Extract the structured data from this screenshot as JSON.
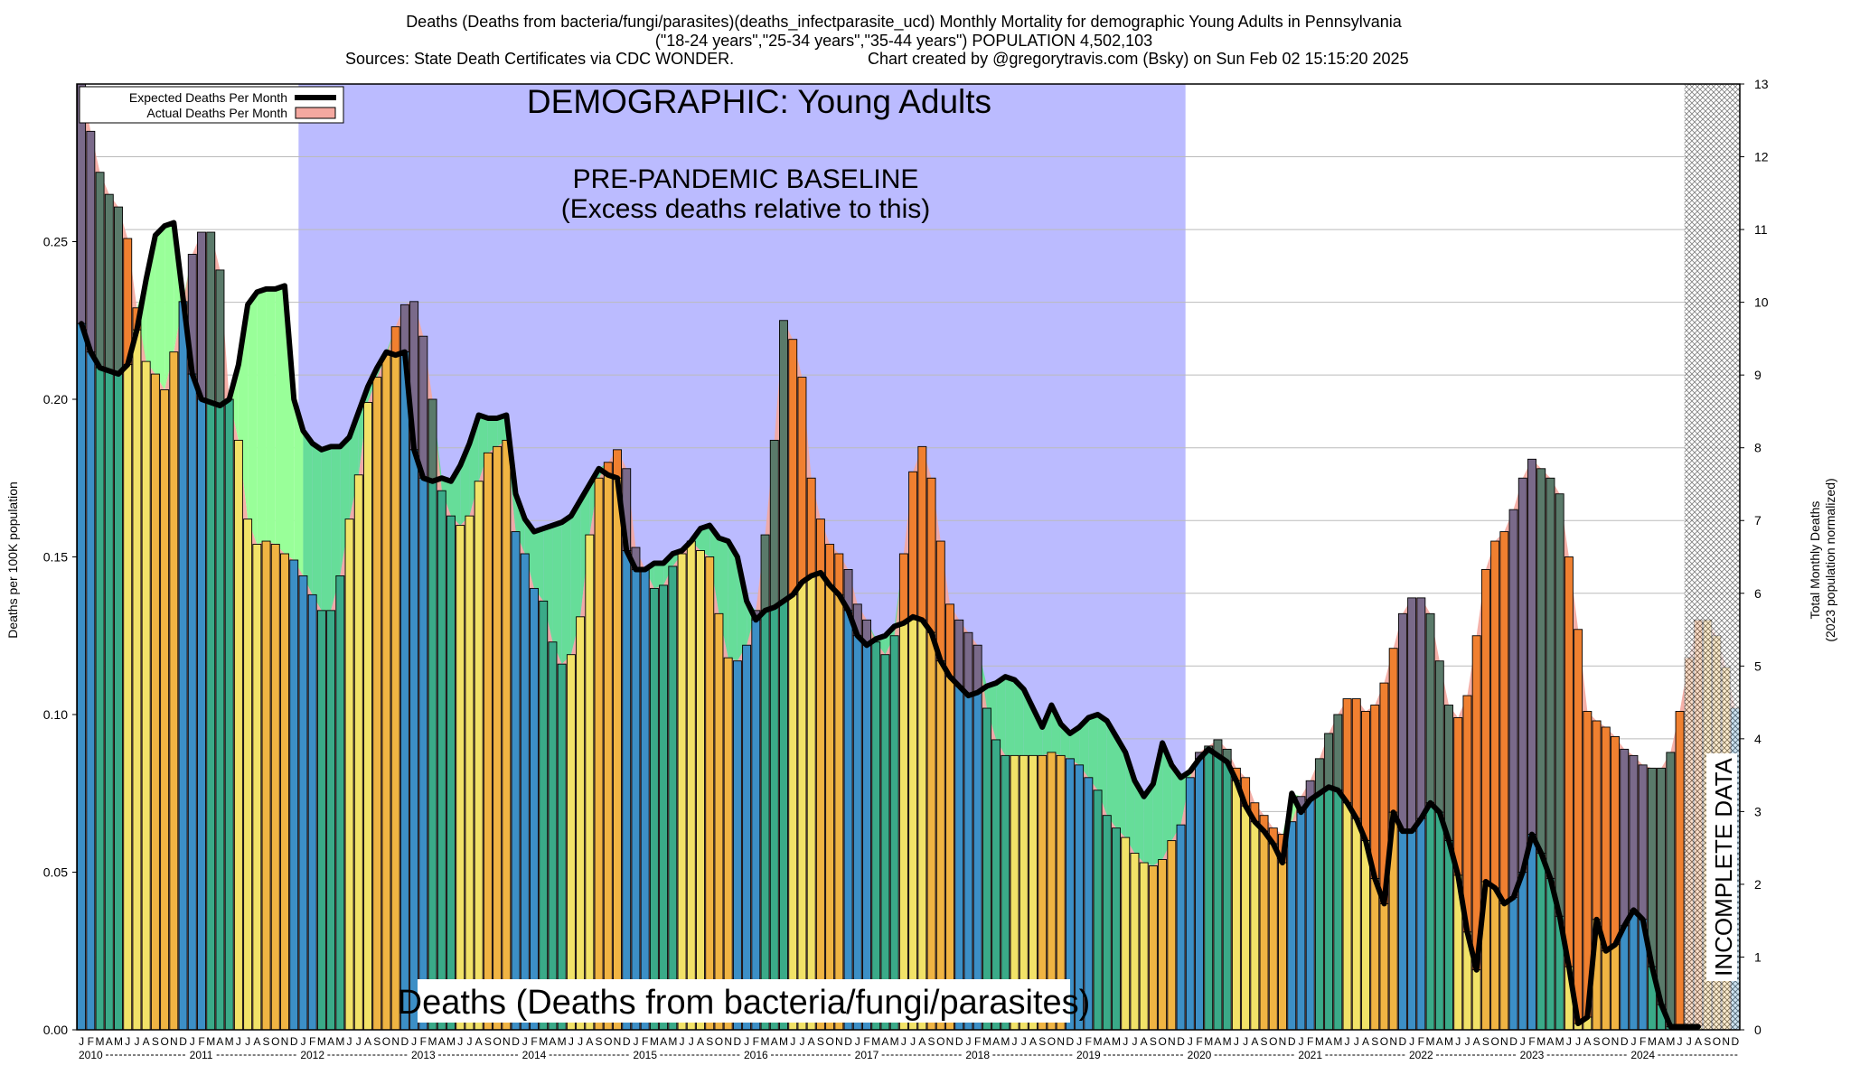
{
  "header": {
    "title_line1": "Deaths (Deaths from bacteria/fungi/parasites)(deaths_infectparasite_ucd) Monthly Mortality for demographic Young Adults in Pennsylvania",
    "title_line2": "(\"18-24 years\",\"25-34 years\",\"35-44 years\") POPULATION 4,502,103",
    "sources": "Sources: State Death Certificates via CDC WONDER.",
    "credit": "Chart created by @gregorytravis.com (Bsky) on Sun Feb 02 15:15:20 2025"
  },
  "legend": {
    "expected": "Expected Deaths Per Month",
    "actual": "Actual Deaths Per Month"
  },
  "annotations": {
    "demographic": "DEMOGRAPHIC: Young Adults",
    "baseline_line1": "PRE-PANDEMIC BASELINE",
    "baseline_line2": "(Excess deaths relative to this)",
    "incomplete": "INCOMPLETE DATA",
    "bottom_label": "Deaths (Deaths from bacteria/fungi/parasites)"
  },
  "colors": {
    "baseline_band": "#bbbbff",
    "winter": "#3c8fc6",
    "spring": "#3aaa88",
    "summer": "#f2e268",
    "fall": "#f0b443",
    "excess_winter": "#7a6a8a",
    "excess_spring": "#5a7a6a",
    "excess_fall": "#f08030",
    "deficit": "#99ff99",
    "deficit_overlap": "#66dd99",
    "expected_line": "#000000",
    "actual_fill": "#f4a8a0"
  },
  "chart_data": {
    "type": "bar",
    "title": "Deaths (Deaths from bacteria/fungi/parasites)(deaths_infectparasite_ucd) Monthly Mortality for demographic Young Adults in Pennsylvania",
    "ylabel_left": "Deaths per 100K population",
    "ylabel_right_line1": "Total Monthly Deaths",
    "ylabel_right_line2": "(2023 population normalized)",
    "ylim_left": [
      0,
      0.3
    ],
    "ylim_right": [
      0,
      13
    ],
    "yticks_left": [
      "0.00",
      "0.05",
      "0.10",
      "0.15",
      "0.20",
      "0.25"
    ],
    "yticks_left_values": [
      0,
      0.05,
      0.1,
      0.15,
      0.2,
      0.25
    ],
    "yticks_right": [
      "0",
      "1",
      "2",
      "3",
      "4",
      "5",
      "6",
      "7",
      "8",
      "9",
      "10",
      "11",
      "12",
      "13"
    ],
    "month_letters": [
      "J",
      "F",
      "M",
      "A",
      "M",
      "J",
      "J",
      "A",
      "S",
      "O",
      "N",
      "D"
    ],
    "year_labels": [
      "2010",
      "2011",
      "2012",
      "2013",
      "2014",
      "2015",
      "2016",
      "2017",
      "2018",
      "2019",
      "2020",
      "2021",
      "2022",
      "2023",
      "2024"
    ],
    "start": "2010-01",
    "baseline_period": [
      "2012-01",
      "2019-12"
    ],
    "incomplete_from": "2024-07",
    "grid": true,
    "legend_position": "top-left",
    "series": [
      {
        "name": "Actual Deaths Per Month",
        "values": [
          0.3,
          0.285,
          0.272,
          0.265,
          0.261,
          0.251,
          0.229,
          0.212,
          0.208,
          0.203,
          0.215,
          0.231,
          0.246,
          0.253,
          0.253,
          0.241,
          0.2,
          0.187,
          0.162,
          0.154,
          0.155,
          0.154,
          0.151,
          0.149,
          0.144,
          0.138,
          0.133,
          0.133,
          0.144,
          0.162,
          0.176,
          0.199,
          0.207,
          0.214,
          0.223,
          0.23,
          0.231,
          0.22,
          0.2,
          0.171,
          0.163,
          0.16,
          0.163,
          0.174,
          0.183,
          0.185,
          0.187,
          0.158,
          0.151,
          0.14,
          0.136,
          0.123,
          0.116,
          0.119,
          0.131,
          0.157,
          0.175,
          0.18,
          0.184,
          0.178,
          0.153,
          0.146,
          0.14,
          0.141,
          0.147,
          0.151,
          0.155,
          0.152,
          0.15,
          0.132,
          0.118,
          0.117,
          0.122,
          0.133,
          0.157,
          0.187,
          0.225,
          0.219,
          0.207,
          0.175,
          0.162,
          0.154,
          0.151,
          0.146,
          0.135,
          0.13,
          0.123,
          0.119,
          0.125,
          0.151,
          0.177,
          0.185,
          0.175,
          0.155,
          0.135,
          0.13,
          0.126,
          0.122,
          0.102,
          0.092,
          0.087,
          0.087,
          0.087,
          0.087,
          0.087,
          0.088,
          0.087,
          0.086,
          0.084,
          0.08,
          0.076,
          0.068,
          0.064,
          0.061,
          0.056,
          0.053,
          0.052,
          0.054,
          0.06,
          0.065,
          0.08,
          0.088,
          0.09,
          0.092,
          0.089,
          0.083,
          0.08,
          0.072,
          0.068,
          0.064,
          0.062,
          0.066,
          0.074,
          0.079,
          0.086,
          0.094,
          0.1,
          0.105,
          0.105,
          0.101,
          0.103,
          0.11,
          0.121,
          0.132,
          0.137,
          0.137,
          0.132,
          0.117,
          0.103,
          0.099,
          0.106,
          0.125,
          0.146,
          0.155,
          0.158,
          0.165,
          0.175,
          0.181,
          0.178,
          0.175,
          0.17,
          0.15,
          0.127,
          0.101,
          0.098,
          0.096,
          0.093,
          0.089,
          0.087,
          0.084,
          0.083,
          0.083,
          0.088,
          0.101,
          0.118,
          0.13,
          0.13,
          0.125,
          0.115,
          0.102
        ]
      },
      {
        "name": "Expected Deaths Per Month",
        "values": [
          0.224,
          0.215,
          0.21,
          0.209,
          0.208,
          0.211,
          0.222,
          0.238,
          0.252,
          0.255,
          0.256,
          0.232,
          0.208,
          0.2,
          0.199,
          0.198,
          0.2,
          0.211,
          0.23,
          0.234,
          0.235,
          0.235,
          0.236,
          0.2,
          0.19,
          0.186,
          0.184,
          0.185,
          0.185,
          0.188,
          0.196,
          0.204,
          0.21,
          0.215,
          0.214,
          0.215,
          0.184,
          0.175,
          0.174,
          0.175,
          0.174,
          0.179,
          0.186,
          0.195,
          0.194,
          0.194,
          0.195,
          0.17,
          0.162,
          0.158,
          0.159,
          0.16,
          0.161,
          0.163,
          0.168,
          0.173,
          0.178,
          0.176,
          0.175,
          0.152,
          0.146,
          0.146,
          0.148,
          0.148,
          0.151,
          0.152,
          0.155,
          0.159,
          0.16,
          0.156,
          0.155,
          0.15,
          0.136,
          0.13,
          0.133,
          0.134,
          0.136,
          0.138,
          0.142,
          0.144,
          0.145,
          0.141,
          0.138,
          0.133,
          0.125,
          0.122,
          0.124,
          0.125,
          0.128,
          0.129,
          0.131,
          0.13,
          0.126,
          0.117,
          0.112,
          0.109,
          0.106,
          0.107,
          0.109,
          0.11,
          0.112,
          0.111,
          0.108,
          0.102,
          0.096,
          0.103,
          0.097,
          0.094,
          0.096,
          0.099,
          0.1,
          0.098,
          0.093,
          0.088,
          0.079,
          0.074,
          0.078,
          0.091,
          0.084,
          0.08,
          0.082,
          0.086,
          0.089,
          0.087,
          0.085,
          0.079,
          0.071,
          0.066,
          0.063,
          0.059,
          0.053,
          0.075,
          0.069,
          0.073,
          0.075,
          0.077,
          0.076,
          0.072,
          0.067,
          0.06,
          0.048,
          0.04,
          0.069,
          0.063,
          0.063,
          0.067,
          0.072,
          0.069,
          0.06,
          0.049,
          0.031,
          0.019,
          0.047,
          0.045,
          0.04,
          0.042,
          0.05,
          0.062,
          0.056,
          0.048,
          0.036,
          0.02,
          0.002,
          0.004,
          0.035,
          0.025,
          0.027,
          0.033,
          0.038,
          0.035,
          0.02,
          0.008,
          0.001,
          0.001,
          0.001,
          0.001
        ]
      }
    ]
  }
}
